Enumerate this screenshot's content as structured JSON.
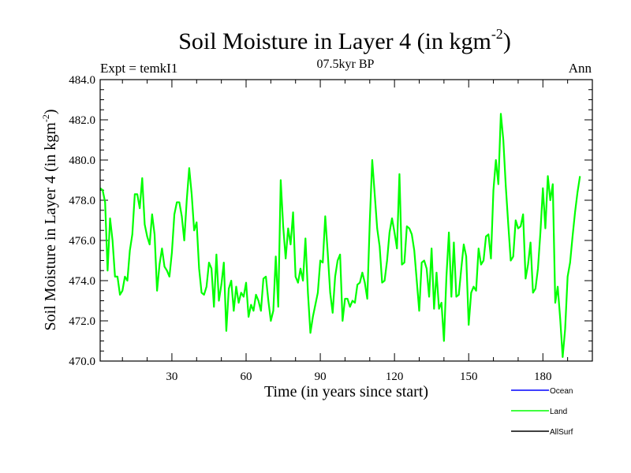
{
  "chart_data": {
    "type": "line",
    "title": "Soil Moisture in Layer 4 (in kgm",
    "title_sup": "-2",
    "title_close": ")",
    "subtitle": "07.5kyr BP",
    "left_label": "Expt = temkI1",
    "right_label": "Ann",
    "xlabel": "Time (in years since start)",
    "ylabel": "Soil Moisture in Layer 4 (in kgm",
    "ylabel_sup": "-2",
    "ylabel_close": ")",
    "xlim": [
      1,
      200
    ],
    "ylim": [
      470,
      484
    ],
    "x_ticks": [
      30,
      60,
      90,
      120,
      150,
      180
    ],
    "x_tick_labels": [
      "30",
      "60",
      "90",
      "120",
      "150",
      "180"
    ],
    "y_ticks": [
      470,
      472,
      474,
      476,
      478,
      480,
      482,
      484
    ],
    "y_tick_labels": [
      "470.0",
      "472.0",
      "474.0",
      "476.0",
      "478.0",
      "480.0",
      "482.0",
      "484.0"
    ],
    "legend": [
      {
        "name": "Ocean",
        "color": "#0000ff"
      },
      {
        "name": "Land",
        "color": "#00ff00"
      },
      {
        "name": "AllSurf",
        "color": "#000000"
      }
    ],
    "series": [
      {
        "name": "Land",
        "color": "#00ff00",
        "values": [
          478.6,
          478.5,
          477.9,
          474.5,
          477.1,
          476.0,
          474.2,
          474.2,
          473.3,
          473.5,
          474.2,
          474.0,
          475.5,
          476.3,
          478.3,
          478.3,
          477.6,
          479.1,
          476.8,
          476.2,
          475.8,
          477.3,
          476.3,
          473.5,
          474.8,
          475.6,
          474.7,
          474.5,
          474.2,
          475.4,
          477.3,
          477.9,
          477.9,
          477.2,
          476.0,
          478.0,
          479.6,
          478.3,
          476.5,
          476.9,
          474.6,
          473.4,
          473.3,
          473.7,
          474.9,
          474.6,
          472.7,
          475.3,
          473.0,
          473.8,
          474.9,
          471.5,
          473.6,
          474.0,
          472.5,
          473.7,
          472.9,
          473.4,
          473.2,
          473.9,
          472.2,
          472.8,
          472.5,
          473.3,
          473.0,
          472.5,
          474.1,
          474.2,
          473.0,
          472.0,
          472.5,
          475.2,
          472.7,
          479.0,
          476.7,
          475.1,
          476.6,
          475.8,
          477.4,
          474.2,
          473.9,
          474.6,
          474.0,
          476.1,
          473.4,
          471.4,
          472.2,
          472.8,
          473.4,
          475.0,
          474.9,
          477.2,
          475.4,
          473.4,
          472.4,
          474.2,
          475.0,
          475.3,
          472.0,
          473.1,
          473.1,
          472.7,
          473.0,
          472.9,
          473.8,
          473.9,
          474.4,
          473.9,
          473.1,
          476.9,
          480.0,
          478.3,
          476.6,
          475.7,
          473.9,
          474.0,
          475.0,
          476.4,
          477.1,
          476.4,
          475.6,
          479.3,
          474.8,
          474.9,
          476.7,
          476.6,
          476.3,
          475.5,
          474.0,
          472.5,
          474.9,
          475.0,
          474.6,
          473.2,
          475.6,
          472.6,
          474.4,
          472.6,
          472.9,
          471.0,
          474.2,
          476.4,
          473.2,
          475.9,
          473.2,
          473.3,
          474.6,
          475.8,
          475.2,
          471.8,
          473.4,
          473.7,
          473.5,
          475.6,
          474.8,
          475.0,
          476.2,
          476.3,
          475.1,
          478.5,
          480.0,
          478.8,
          482.3,
          481.0,
          478.7,
          476.8,
          475.0,
          475.2,
          477.0,
          476.6,
          476.7,
          477.3,
          474.1,
          474.8,
          475.9,
          473.4,
          473.6,
          474.6,
          476.4,
          478.6,
          476.6,
          479.2,
          478.0,
          478.8,
          472.9,
          473.7,
          472.1,
          470.2,
          471.6,
          474.2,
          474.9,
          476.2,
          477.4,
          478.4,
          479.2
        ]
      }
    ]
  }
}
